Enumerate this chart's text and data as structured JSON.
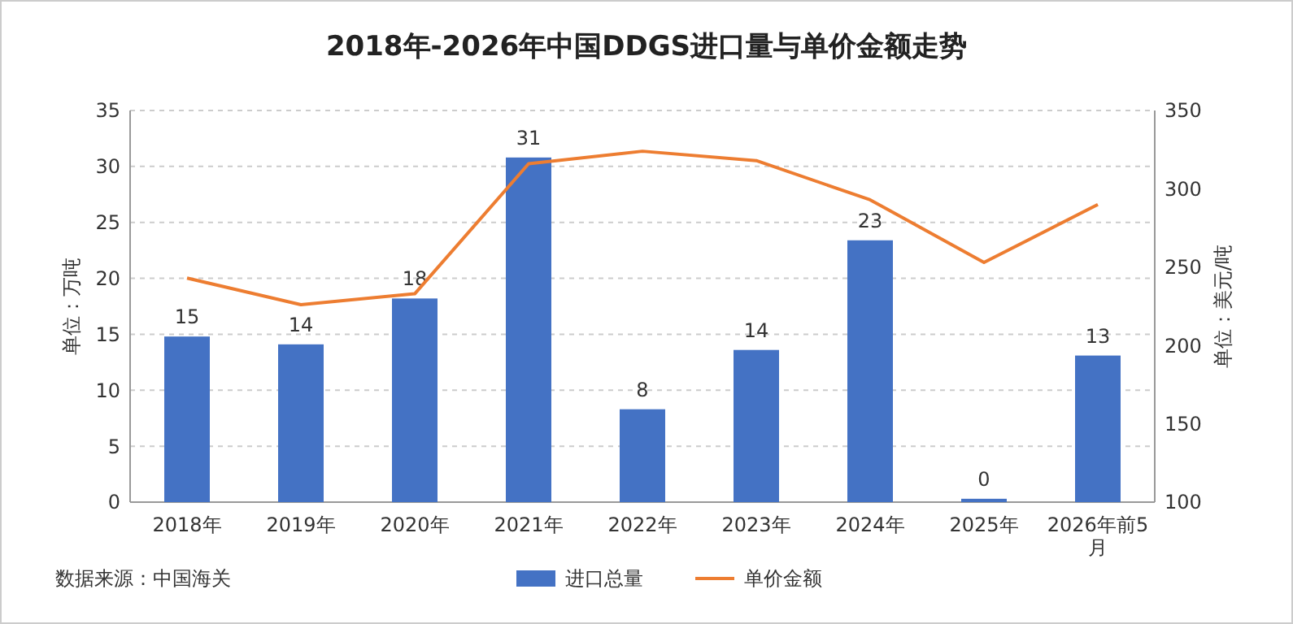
{
  "chart_data": {
    "type": "bar",
    "title": "2018年-2026年中国DDGS进口量与单价金额走势",
    "categories": [
      "2018年",
      "2019年",
      "2020年",
      "2021年",
      "2022年",
      "2023年",
      "2024年",
      "2025年",
      "2026年前5月"
    ],
    "series": [
      {
        "name": "进口总量",
        "color": "#4472c4",
        "values": [
          14.8,
          14.1,
          18.2,
          30.8,
          8.3,
          13.6,
          23.4,
          0.3,
          13.1
        ],
        "value_labels": [
          "15",
          "14",
          "18",
          "31",
          "8",
          "14",
          "23",
          "0",
          "13"
        ]
      },
      {
        "name": "单价金额",
        "type": "line",
        "axis": "y2",
        "color": "#ed7d31",
        "values": [
          243,
          226,
          233,
          316,
          324,
          318,
          293,
          253,
          290
        ]
      }
    ],
    "ylabel": "单位：万吨",
    "y2label": "单位：美元/吨",
    "ylim": [
      0,
      35
    ],
    "yticks": [
      0,
      5,
      10,
      15,
      20,
      25,
      30,
      35
    ],
    "y2lim": [
      100,
      350
    ],
    "y2ticks": [
      100,
      150,
      200,
      250,
      300,
      350
    ],
    "grid": "y",
    "legend": "bottom",
    "marker": "none",
    "annotations": [
      "数据来源：中国海关"
    ]
  }
}
